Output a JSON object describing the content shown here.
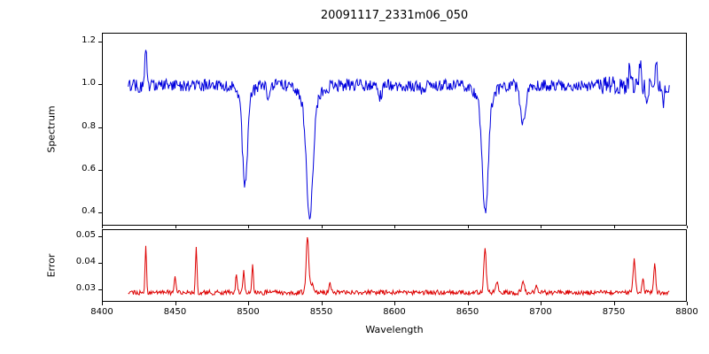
{
  "figure": {
    "background": "#ffffff",
    "text_color": "#000000"
  },
  "axes": {
    "xlim": [
      8400,
      8800
    ],
    "xticks": [
      8400,
      8450,
      8500,
      8550,
      8600,
      8650,
      8700,
      8750,
      8800
    ],
    "xtick_labels": [
      "8400",
      "8450",
      "8500",
      "8550",
      "8600",
      "8650",
      "8700",
      "8750",
      "8800"
    ],
    "xlabel": "Wavelength",
    "grid": false,
    "legend": "none"
  },
  "chart_data": [
    {
      "type": "line",
      "title": "20091117_2331m06_050",
      "ylabel": "Spectrum",
      "color": "#0000dd",
      "xlim": [
        8400,
        8800
      ],
      "ylim": [
        0.34,
        1.24
      ],
      "yticks": [
        0.4,
        0.6,
        0.8,
        1.0,
        1.2
      ],
      "ytick_labels": [
        "0.4",
        "0.6",
        "0.8",
        "1.0",
        "1.2"
      ],
      "x_start": 8418,
      "x_end": 8788,
      "x_step": 0.5,
      "baseline": 0.995,
      "noise": 0.028,
      "seed": 7,
      "noise_regions": [
        {
          "from": 8418,
          "to": 8430,
          "factor": 1.2
        },
        {
          "from": 8742,
          "to": 8790,
          "factor": 1.6
        }
      ],
      "features": [
        {
          "center": 8430.0,
          "sigma": 0.7,
          "amplitude": 0.165
        },
        {
          "center": 8497.8,
          "sigma": 1.7,
          "amplitude": -0.4
        },
        {
          "center": 8497.8,
          "sigma": 4.5,
          "amplitude": -0.06
        },
        {
          "center": 8514.0,
          "sigma": 1.2,
          "amplitude": -0.06
        },
        {
          "center": 8542.1,
          "sigma": 2.2,
          "amplitude": -0.53
        },
        {
          "center": 8542.1,
          "sigma": 6.0,
          "amplitude": -0.09
        },
        {
          "center": 8590.0,
          "sigma": 1.5,
          "amplitude": -0.05
        },
        {
          "center": 8620.0,
          "sigma": 1.2,
          "amplitude": -0.04
        },
        {
          "center": 8662.1,
          "sigma": 2.0,
          "amplitude": -0.52
        },
        {
          "center": 8662.1,
          "sigma": 5.5,
          "amplitude": -0.08
        },
        {
          "center": 8688.0,
          "sigma": 1.8,
          "amplitude": -0.19
        },
        {
          "center": 8761.0,
          "sigma": 0.6,
          "amplitude": 0.09
        },
        {
          "center": 8768.0,
          "sigma": 0.6,
          "amplitude": 0.11
        },
        {
          "center": 8773.0,
          "sigma": 0.7,
          "amplitude": -0.11
        },
        {
          "center": 8779.0,
          "sigma": 0.6,
          "amplitude": 0.12
        },
        {
          "center": 8784.0,
          "sigma": 0.6,
          "amplitude": -0.09
        }
      ]
    },
    {
      "type": "line",
      "ylabel": "Error",
      "xlabel": "Wavelength",
      "color": "#dd0000",
      "xlim": [
        8400,
        8800
      ],
      "ylim": [
        0.0252,
        0.0525
      ],
      "yticks": [
        0.03,
        0.04,
        0.05
      ],
      "ytick_labels": [
        "0.03",
        "0.04",
        "0.05"
      ],
      "x_start": 8418,
      "x_end": 8788,
      "x_step": 0.5,
      "baseline": 0.0287,
      "noise": 0.0009,
      "seed": 13,
      "noise_regions": [],
      "features": [
        {
          "center": 8430.0,
          "sigma": 0.5,
          "amplitude": 0.018
        },
        {
          "center": 8450.0,
          "sigma": 0.5,
          "amplitude": 0.006
        },
        {
          "center": 8464.5,
          "sigma": 0.5,
          "amplitude": 0.017
        },
        {
          "center": 8492.0,
          "sigma": 0.6,
          "amplitude": 0.007
        },
        {
          "center": 8497.0,
          "sigma": 0.6,
          "amplitude": 0.008
        },
        {
          "center": 8503.0,
          "sigma": 0.5,
          "amplitude": 0.011
        },
        {
          "center": 8540.5,
          "sigma": 0.8,
          "amplitude": 0.019
        },
        {
          "center": 8542.5,
          "sigma": 2.0,
          "amplitude": 0.0035
        },
        {
          "center": 8556.0,
          "sigma": 0.8,
          "amplitude": 0.003
        },
        {
          "center": 8662.0,
          "sigma": 0.8,
          "amplitude": 0.0165
        },
        {
          "center": 8670.0,
          "sigma": 0.8,
          "amplitude": 0.004
        },
        {
          "center": 8688.0,
          "sigma": 1.0,
          "amplitude": 0.004
        },
        {
          "center": 8697.0,
          "sigma": 0.7,
          "amplitude": 0.003
        },
        {
          "center": 8764.0,
          "sigma": 0.8,
          "amplitude": 0.012
        },
        {
          "center": 8770.0,
          "sigma": 0.6,
          "amplitude": 0.006
        },
        {
          "center": 8778.0,
          "sigma": 0.7,
          "amplitude": 0.0105
        }
      ]
    }
  ]
}
